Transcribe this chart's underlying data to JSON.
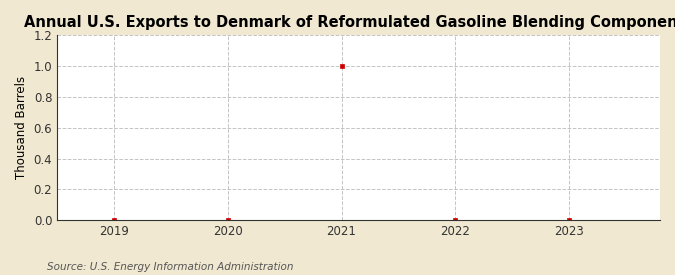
{
  "title": "Annual U.S. Exports to Denmark of Reformulated Gasoline Blending Components",
  "ylabel": "Thousand Barrels",
  "source": "Source: U.S. Energy Information Administration",
  "figure_bg_color": "#f0e8d0",
  "plot_bg_color": "#ffffff",
  "x_data": [
    2019,
    2020,
    2021,
    2022,
    2023
  ],
  "y_data": [
    0.0,
    0.0,
    1.0,
    0.0,
    0.0
  ],
  "marker_color": "#cc0000",
  "marker_style": "s",
  "marker_size": 3,
  "xlim": [
    2018.5,
    2023.8
  ],
  "ylim": [
    0.0,
    1.2
  ],
  "yticks": [
    0.0,
    0.2,
    0.4,
    0.6,
    0.8,
    1.0,
    1.2
  ],
  "xticks": [
    2019,
    2020,
    2021,
    2022,
    2023
  ],
  "grid_color": "#aaaaaa",
  "grid_style": "--",
  "grid_alpha": 0.7,
  "title_fontsize": 10.5,
  "label_fontsize": 8.5,
  "tick_fontsize": 8.5,
  "source_fontsize": 7.5
}
